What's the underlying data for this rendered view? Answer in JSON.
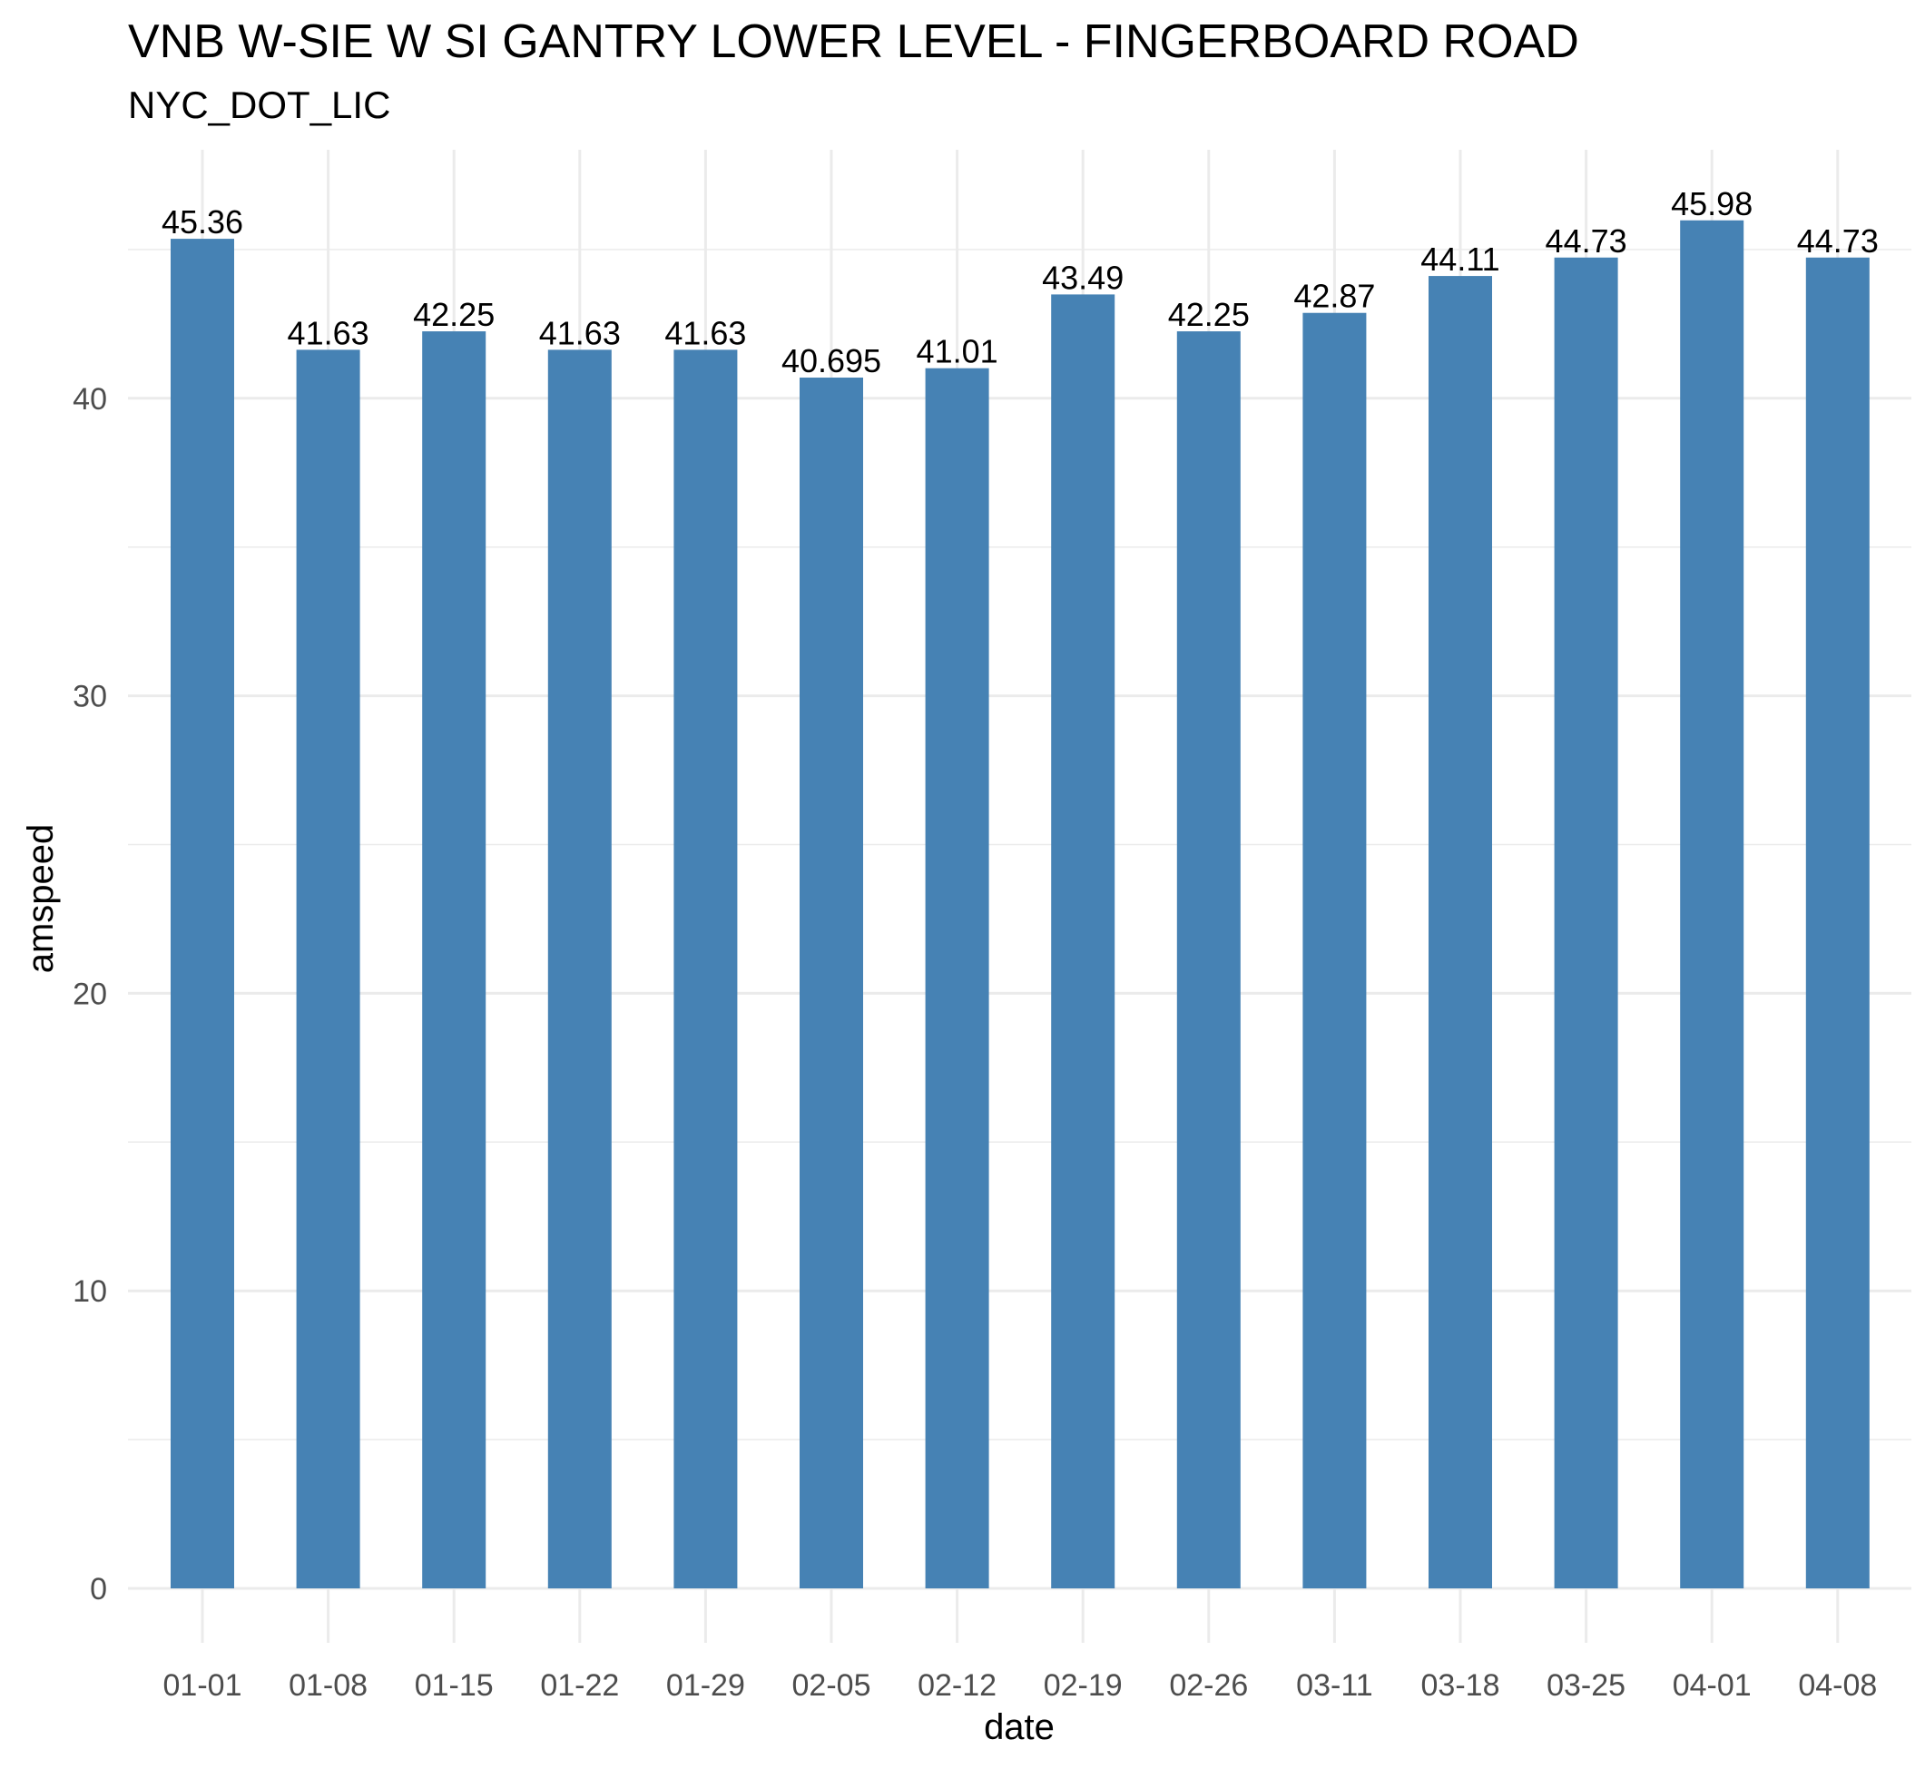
{
  "chart_data": {
    "type": "bar",
    "title": "VNB W-SIE W SI GANTRY LOWER LEVEL - FINGERBOARD ROAD",
    "subtitle": "NYC_DOT_LIC",
    "xlabel": "date",
    "ylabel": "amspeed",
    "categories": [
      "01-01",
      "01-08",
      "01-15",
      "01-22",
      "01-29",
      "02-05",
      "02-12",
      "02-19",
      "02-26",
      "03-11",
      "03-18",
      "03-25",
      "04-01",
      "04-08"
    ],
    "values": [
      45.36,
      41.63,
      42.25,
      41.63,
      41.63,
      40.695,
      41.01,
      43.49,
      42.25,
      42.87,
      44.11,
      44.73,
      45.98,
      44.73
    ],
    "data_labels": [
      "45.36",
      "41.63",
      "42.25",
      "41.63",
      "41.63",
      "40.695",
      "41.01",
      "43.49",
      "42.25",
      "42.87",
      "44.11",
      "44.73",
      "45.98",
      "44.73"
    ],
    "yticks": [
      0,
      10,
      20,
      30,
      40
    ],
    "ylim": [
      0,
      48
    ],
    "grid": true,
    "legend": "none",
    "bar_color": "#4682B4",
    "grid_color": "#EBEBEB"
  }
}
